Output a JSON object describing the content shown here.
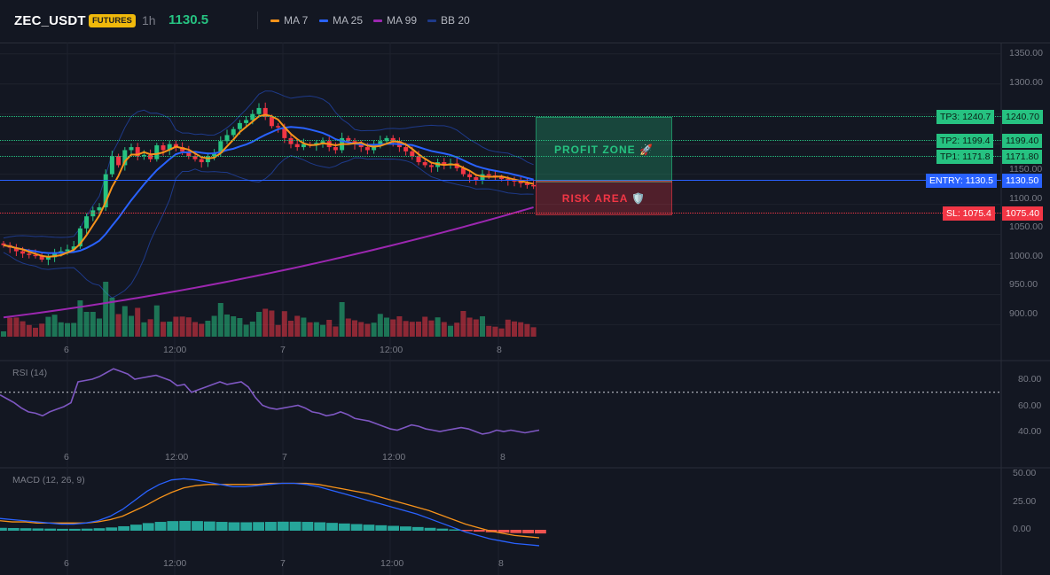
{
  "header": {
    "symbol": "ZEC_USDT",
    "badge": "FUTURES",
    "timeframe": "1h",
    "last_price": "1130.5",
    "legend": [
      {
        "label": "MA 7",
        "color": "#f7931a"
      },
      {
        "label": "MA 25",
        "color": "#2962ff"
      },
      {
        "label": "MA 99",
        "color": "#9c27b0"
      },
      {
        "label": "BB 20",
        "color": "#1e3a8a"
      }
    ]
  },
  "price_axis": [
    "1350.00",
    "1300.00",
    "1250.00",
    "1200.00",
    "1150.00",
    "1100.00",
    "1050.00",
    "1000.00",
    "950.00",
    "900.00"
  ],
  "time_axis": [
    "6",
    "12:00",
    "7",
    "12:00",
    "8"
  ],
  "levels": {
    "tp3": {
      "tag": "TP3: 1240.7",
      "axis": "1240.70",
      "value": 1240.7
    },
    "tp2": {
      "tag": "TP2: 1199.4",
      "axis": "1199.40",
      "value": 1199.4
    },
    "tp1": {
      "tag": "TP1: 1171.8",
      "axis": "1171.80",
      "value": 1171.8
    },
    "entry": {
      "tag": "ENTRY: 1130.5",
      "axis": "1130.50",
      "value": 1130.5
    },
    "sl": {
      "tag": "SL: 1075.4",
      "axis": "1075.40",
      "value": 1075.4
    }
  },
  "zones": {
    "profit": "PROFIT ZONE 🚀",
    "risk": "RISK AREA 🛡️"
  },
  "rsi": {
    "label": "RSI (14)",
    "axis": [
      "80.00",
      "60.00",
      "40.00"
    ],
    "overbought": 70
  },
  "macd": {
    "label": "MACD (12, 26, 9)",
    "axis": [
      "50.00",
      "25.00",
      "0.00"
    ]
  },
  "colors": {
    "up": "#26c281",
    "down": "#f23645",
    "background": "#131722",
    "grid": "#1e222d"
  },
  "chart_data": {
    "type": "candlestick",
    "ylim": [
      880,
      1360
    ],
    "close": [
      1032,
      1028,
      1022,
      1018,
      1016,
      1015,
      1008,
      1012,
      1020,
      1022,
      1025,
      1030,
      1060,
      1080,
      1090,
      1095,
      1150,
      1180,
      1165,
      1190,
      1195,
      1180,
      1182,
      1175,
      1198,
      1190,
      1200,
      1195,
      1188,
      1180,
      1175,
      1170,
      1180,
      1185,
      1205,
      1215,
      1225,
      1235,
      1240,
      1250,
      1260,
      1245,
      1230,
      1228,
      1210,
      1200,
      1195,
      1200,
      1198,
      1202,
      1205,
      1195,
      1190,
      1210,
      1205,
      1200,
      1195,
      1190,
      1198,
      1205,
      1210,
      1205,
      1195,
      1188,
      1180,
      1170,
      1165,
      1162,
      1170,
      1165,
      1168,
      1160,
      1150,
      1145,
      1140,
      1150,
      1148,
      1145,
      1142,
      1140,
      1138,
      1135,
      1132,
      1130.5
    ],
    "ma7_end": 1140,
    "ma25_end": 1160,
    "ma99_end": 1095,
    "volume_peak_note": "",
    "rsi_values": [
      68,
      65,
      62,
      58,
      55,
      54,
      52,
      55,
      57,
      59,
      62,
      78,
      79,
      80,
      82,
      85,
      88,
      86,
      84,
      80,
      81,
      82,
      83,
      81,
      79,
      75,
      76,
      70,
      72,
      74,
      76,
      78,
      76,
      77,
      78,
      74,
      66,
      60,
      58,
      57,
      58,
      59,
      60,
      58,
      55,
      54,
      52,
      53,
      55,
      53,
      50,
      49,
      48,
      46,
      44,
      42,
      41,
      43,
      45,
      44,
      42,
      41,
      40,
      41,
      42,
      43,
      42,
      40,
      38,
      39,
      41,
      40,
      41,
      40,
      39,
      40,
      41
    ],
    "macd_values": [
      10,
      9,
      8,
      7,
      6,
      5,
      5,
      6,
      8,
      12,
      18,
      26,
      34,
      40,
      44,
      45,
      44,
      42,
      40,
      38,
      38,
      39,
      40,
      41,
      41,
      40,
      38,
      35,
      32,
      29,
      26,
      23,
      20,
      17,
      14,
      10,
      6,
      2,
      -2,
      -5,
      -8,
      -10,
      -12,
      -13,
      -14
    ],
    "signal_values": [
      8,
      7,
      7,
      6,
      6,
      6,
      6,
      6,
      7,
      9,
      12,
      17,
      22,
      28,
      33,
      37,
      39,
      40,
      40,
      40,
      40,
      40,
      41,
      41,
      41,
      41,
      40,
      38,
      36,
      34,
      32,
      29,
      26,
      23,
      20,
      17,
      13,
      9,
      5,
      2,
      -1,
      -3,
      -5,
      -6,
      -7
    ]
  }
}
